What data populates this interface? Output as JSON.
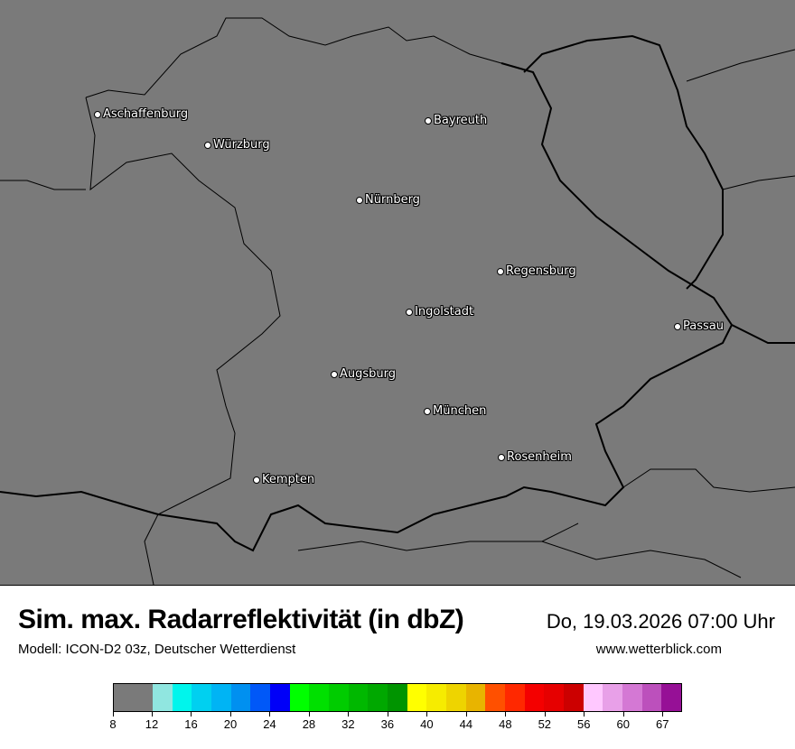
{
  "map": {
    "background": "#7a7a7a",
    "cities": [
      {
        "name": "Aschaffenburg"
      },
      {
        "name": "Würzburg"
      },
      {
        "name": "Bayreuth"
      },
      {
        "name": "Nürnberg"
      },
      {
        "name": "Regensburg"
      },
      {
        "name": "Ingolstadt"
      },
      {
        "name": "Passau"
      },
      {
        "name": "Augsburg"
      },
      {
        "name": "München"
      },
      {
        "name": "Rosenheim"
      },
      {
        "name": "Kempten"
      }
    ]
  },
  "header": {
    "title": "Sim. max. Radarreflektivität (in dbZ)",
    "datetime": "Do, 19.03.2026 07:00 Uhr",
    "model": "Modell: ICON-D2 03z, Deutscher Wetterdienst",
    "website": "www.wetterblick.com"
  },
  "legend": {
    "colors": [
      "#7a7a7a",
      "#90e6e0",
      "#00f5ec",
      "#00d0f0",
      "#00b4f4",
      "#0090f0",
      "#0058f8",
      "#0000f8",
      "#00ff00",
      "#00e000",
      "#00cc00",
      "#00b800",
      "#00a800",
      "#009400",
      "#ffff00",
      "#f6ec00",
      "#eed400",
      "#e8b400",
      "#ff5000",
      "#ff2800",
      "#f40000",
      "#e60000",
      "#cc0000",
      "#ffc8ff",
      "#e8a0e8",
      "#d478d4",
      "#bc50bc",
      "#961096"
    ],
    "labels": [
      "8",
      "12",
      "16",
      "20",
      "24",
      "28",
      "32",
      "36",
      "40",
      "44",
      "48",
      "52",
      "56",
      "60",
      "67"
    ]
  }
}
